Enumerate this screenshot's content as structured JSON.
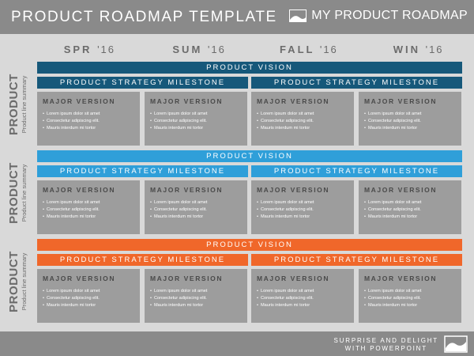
{
  "header": {
    "title": "PRODUCT ROADMAP TEMPLATE",
    "right_label": "MY PRODUCT ROADMAP"
  },
  "seasons": [
    {
      "name": "SPR",
      "year": "'16"
    },
    {
      "name": "SUM",
      "year": "'16"
    },
    {
      "name": "FALL",
      "year": "'16"
    },
    {
      "name": "WIN",
      "year": "'16"
    }
  ],
  "colors": {
    "header_bg": "#8a8a8a",
    "page_bg": "#d9d9d9",
    "card_bg": "#9d9d9d",
    "group1_vision": "#16587a",
    "group1_milestone": "#16587a",
    "group2_vision": "#2f9fd9",
    "group2_milestone": "#2f9fd9",
    "group3_vision": "#f0672a",
    "group3_milestone": "#f0672a"
  },
  "groups": [
    {
      "side_label": "PRODUCT",
      "side_sub": "Product line summary",
      "vision": "PRODUCT VISION",
      "milestones": [
        "PRODUCT STRATEGY MILESTONE",
        "PRODUCT STRATEGY MILESTONE"
      ],
      "cards": [
        {
          "title": "MAJOR VERSION",
          "bullets": [
            "Lorem ipsum dolor sit amet",
            "Consectetur adipiscing elit.",
            "Mauris interdum mi tortor"
          ]
        },
        {
          "title": "MAJOR VERSION",
          "bullets": [
            "Lorem ipsum dolor sit amet",
            "Consectetur adipiscing elit.",
            "Mauris interdum mi tortor"
          ]
        },
        {
          "title": "MAJOR VERSION",
          "bullets": [
            "Lorem ipsum dolor sit amet",
            "Consectetur adipiscing elit.",
            "Mauris interdum mi tortor"
          ]
        },
        {
          "title": "MAJOR VERSION",
          "bullets": [
            "Lorem ipsum dolor sit amet",
            "Consectetur adipiscing elit.",
            "Mauris interdum mi tortor"
          ]
        }
      ]
    },
    {
      "side_label": "PRODUCT",
      "side_sub": "Product line summary",
      "vision": "PRODUCT VISION",
      "milestones": [
        "PRODUCT STRATEGY MILESTONE",
        "PRODUCT STRATEGY MILESTONE"
      ],
      "cards": [
        {
          "title": "MAJOR VERSION",
          "bullets": [
            "Lorem ipsum dolor sit amet",
            "Consectetur adipiscing elit.",
            "Mauris interdum mi tortor"
          ]
        },
        {
          "title": "MAJOR VERSION",
          "bullets": [
            "Lorem ipsum dolor sit amet",
            "Consectetur adipiscing elit.",
            "Mauris interdum mi tortor"
          ]
        },
        {
          "title": "MAJOR VERSION",
          "bullets": [
            "Lorem ipsum dolor sit amet",
            "Consectetur adipiscing elit.",
            "Mauris interdum mi tortor"
          ]
        },
        {
          "title": "MAJOR VERSION",
          "bullets": [
            "Lorem ipsum dolor sit amet",
            "Consectetur adipiscing elit.",
            "Mauris interdum mi tortor"
          ]
        }
      ]
    },
    {
      "side_label": "PRODUCT",
      "side_sub": "Product line summary",
      "vision": "PRODUCT VISION",
      "milestones": [
        "PRODUCT STRATEGY MILESTONE",
        "PRODUCT STRATEGY MILESTONE"
      ],
      "cards": [
        {
          "title": "MAJOR VERSION",
          "bullets": [
            "Lorem ipsum dolor sit amet",
            "Consectetur adipiscing elit.",
            "Mauris interdum mi tortor"
          ]
        },
        {
          "title": "MAJOR VERSION",
          "bullets": [
            "Lorem ipsum dolor sit amet",
            "Consectetur adipiscing elit.",
            "Mauris interdum mi tortor"
          ]
        },
        {
          "title": "MAJOR VERSION",
          "bullets": [
            "Lorem ipsum dolor sit amet",
            "Consectetur adipiscing elit.",
            "Mauris interdum mi tortor"
          ]
        },
        {
          "title": "MAJOR VERSION",
          "bullets": [
            "Lorem ipsum dolor sit amet",
            "Consectetur adipiscing elit.",
            "Mauris interdum mi tortor"
          ]
        }
      ]
    }
  ],
  "footer": {
    "line1": "SURPRISE AND DELIGHT",
    "line2": "WITH POWERPOINT",
    "logo_icon": "wave-logo-icon"
  }
}
